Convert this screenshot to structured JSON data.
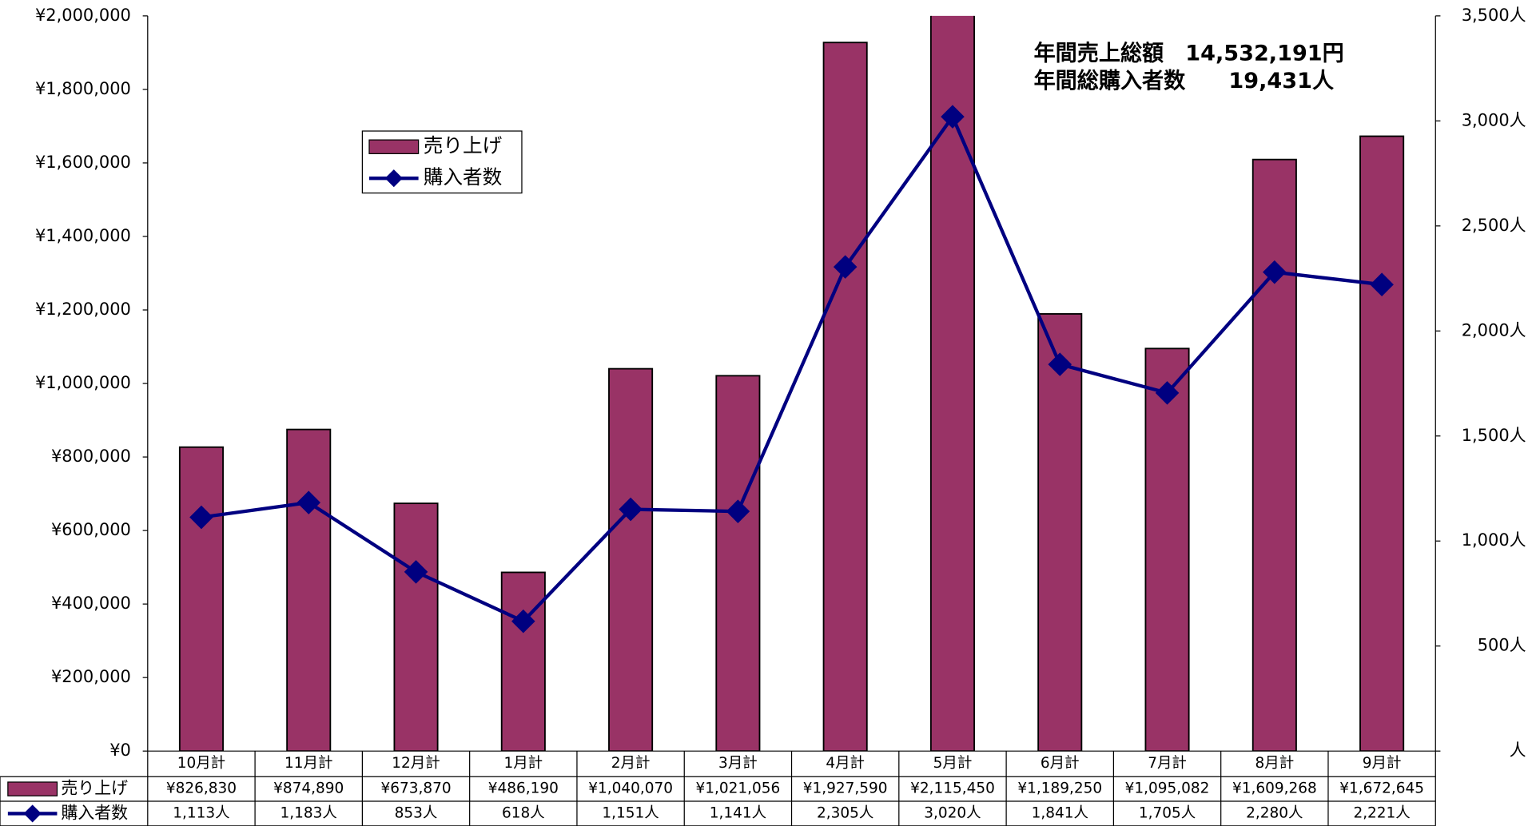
{
  "chart_data": {
    "type": "bar_line",
    "categories": [
      "10月計",
      "11月計",
      "12月計",
      "1月計",
      "2月計",
      "3月計",
      "4月計",
      "5月計",
      "6月計",
      "7月計",
      "8月計",
      "9月計"
    ],
    "series": [
      {
        "name": "売り上げ",
        "type": "bar",
        "color": "#993366",
        "values": [
          826830,
          874890,
          673870,
          486190,
          1040070,
          1021056,
          1927590,
          2115450,
          1189250,
          1095082,
          1609268,
          1672645
        ],
        "value_labels": [
          "¥826,830",
          "¥874,890",
          "¥673,870",
          "¥486,190",
          "¥1,040,070",
          "¥1,021,056",
          "¥1,927,590",
          "¥2,115,450",
          "¥1,189,250",
          "¥1,095,082",
          "¥1,609,268",
          "¥1,672,645"
        ]
      },
      {
        "name": "購入者数",
        "type": "line",
        "axis": "y2",
        "color": "#000080",
        "values": [
          1113,
          1183,
          853,
          618,
          1151,
          1141,
          2305,
          3020,
          1841,
          1705,
          2280,
          2221
        ],
        "value_labels": [
          "1,113人",
          "1,183人",
          "853人",
          "618人",
          "1,151人",
          "1,141人",
          "2,305人",
          "3,020人",
          "1,841人",
          "1,705人",
          "2,280人",
          "2,221人"
        ]
      }
    ],
    "ylim": [
      0,
      2000000
    ],
    "yticks": [
      {
        "value": 0,
        "label": "¥0"
      },
      {
        "value": 200000,
        "label": "¥200,000"
      },
      {
        "value": 400000,
        "label": "¥400,000"
      },
      {
        "value": 600000,
        "label": "¥600,000"
      },
      {
        "value": 800000,
        "label": "¥800,000"
      },
      {
        "value": 1000000,
        "label": "¥1,000,000"
      },
      {
        "value": 1200000,
        "label": "¥1,200,000"
      },
      {
        "value": 1400000,
        "label": "¥1,400,000"
      },
      {
        "value": 1600000,
        "label": "¥1,600,000"
      },
      {
        "value": 1800000,
        "label": "¥1,800,000"
      },
      {
        "value": 2000000,
        "label": "¥2,000,000"
      }
    ],
    "y2lim": [
      0,
      3500
    ],
    "y2ticks": [
      {
        "value": 0,
        "label": "人"
      },
      {
        "value": 500,
        "label": "500人"
      },
      {
        "value": 1000,
        "label": "1,000人"
      },
      {
        "value": 1500,
        "label": "1,500人"
      },
      {
        "value": 2000,
        "label": "2,000人"
      },
      {
        "value": 2500,
        "label": "2,500人"
      },
      {
        "value": 3000,
        "label": "3,000人"
      },
      {
        "value": 3500,
        "label": "3,500人"
      }
    ],
    "annotations": [
      "年間売上総額　14,532,191円",
      "年間総購入者数　　19,431人"
    ]
  }
}
